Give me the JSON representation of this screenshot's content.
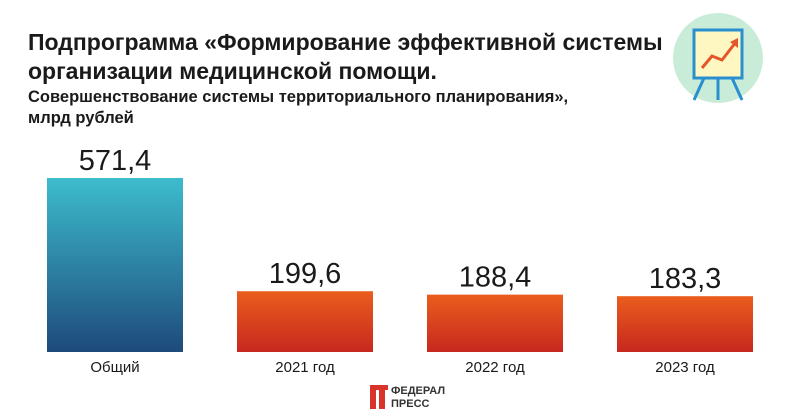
{
  "chart_data": {
    "type": "bar",
    "title": [
      "Подпрограмма «Формирование эффективной системы",
      "организации медицинской помощи."
    ],
    "subtitle": [
      "Совершенствование системы территориального планирования»,",
      "млрд рублей"
    ],
    "categories": [
      "Общий",
      "2021 год",
      "2022 год",
      "2023 год"
    ],
    "values": [
      571.4,
      199.6,
      188.4,
      183.3
    ],
    "value_labels": [
      "571,4",
      "199,6",
      "188,4",
      "183,3"
    ],
    "colors": [
      [
        "#3dbccd",
        "#1e4a7b"
      ],
      [
        "#ea5d1d",
        "#c7281f"
      ],
      [
        "#ea5d1d",
        "#c7281f"
      ],
      [
        "#ea5d1d",
        "#c7281f"
      ]
    ]
  },
  "logo": [
    "ФЕДЕРАЛ",
    "ПРЕСС"
  ]
}
